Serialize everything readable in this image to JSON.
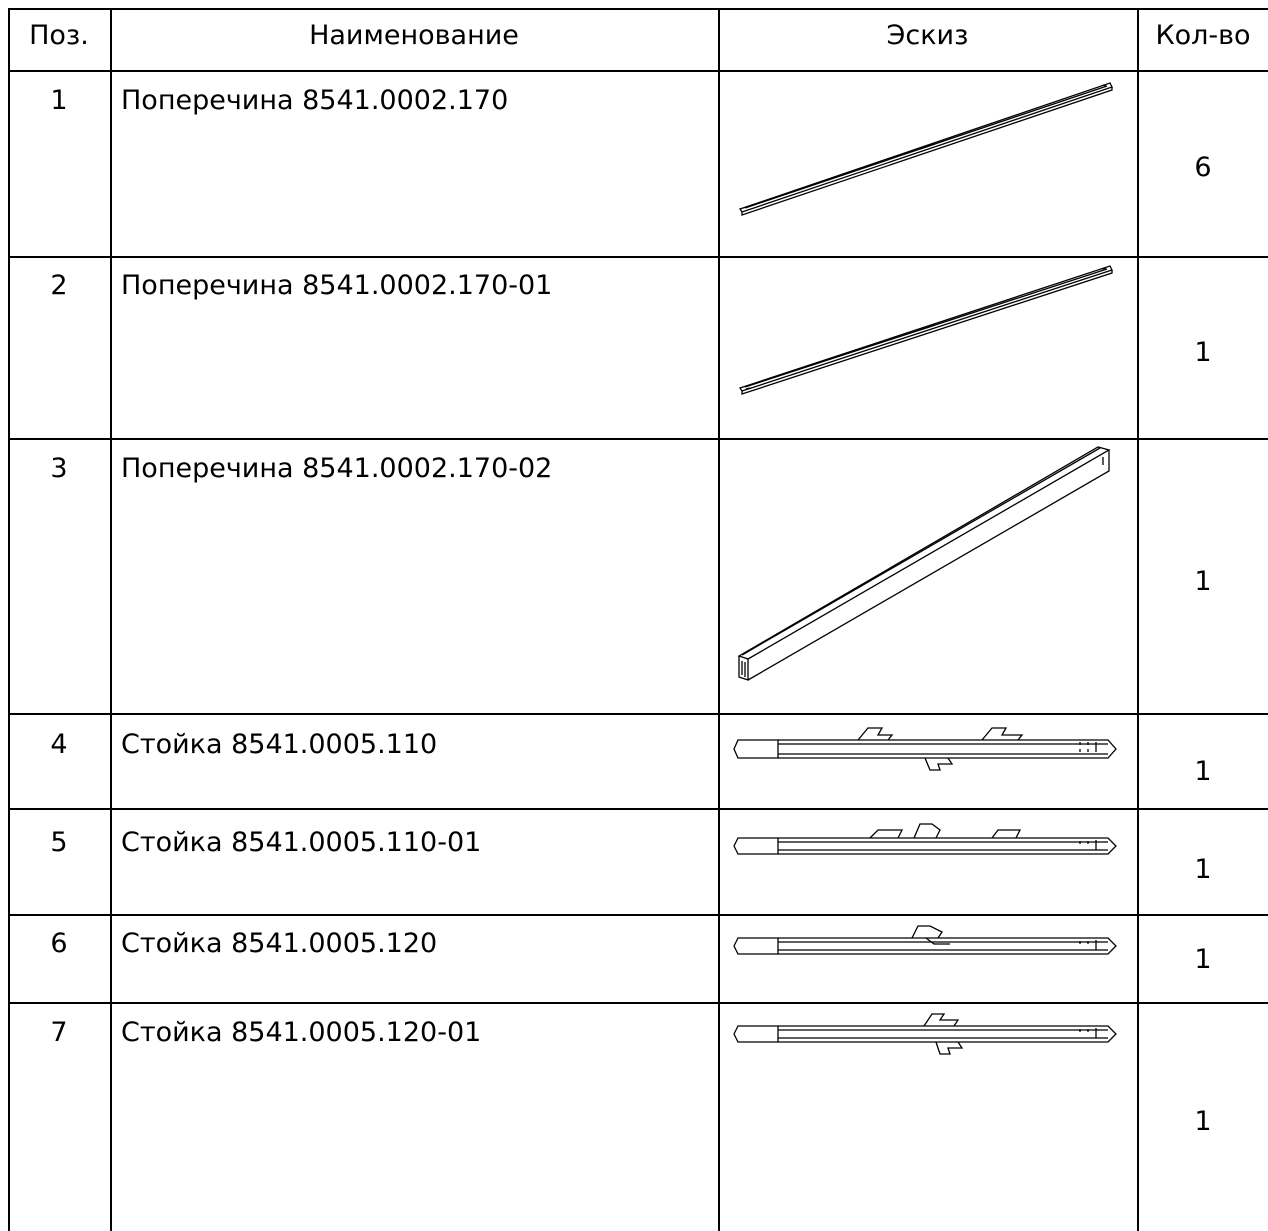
{
  "table": {
    "headers": {
      "position": "Поз.",
      "name": "Наименование",
      "sketch": "Эскиз",
      "quantity": "Кол-во"
    },
    "rows": [
      {
        "position": "1",
        "name": "Поперечина 8541.0002.170",
        "sketch": "flat-bar-sketch",
        "quantity": "6"
      },
      {
        "position": "2",
        "name": "Поперечина 8541.0002.170-01",
        "sketch": "flat-bar-sketch",
        "quantity": "1"
      },
      {
        "position": "3",
        "name": "Поперечина 8541.0002.170-02",
        "sketch": "tube-beam-sketch",
        "quantity": "1"
      },
      {
        "position": "4",
        "name": "Стойка 8541.0005.110",
        "sketch": "post-sketch",
        "quantity": "1"
      },
      {
        "position": "5",
        "name": "Стойка 8541.0005.110-01",
        "sketch": "post-sketch",
        "quantity": "1"
      },
      {
        "position": "6",
        "name": "Стойка 8541.0005.120",
        "sketch": "post-sketch",
        "quantity": "1"
      },
      {
        "position": "7",
        "name": "Стойка 8541.0005.120-01",
        "sketch": "post-sketch",
        "quantity": "1"
      }
    ]
  }
}
